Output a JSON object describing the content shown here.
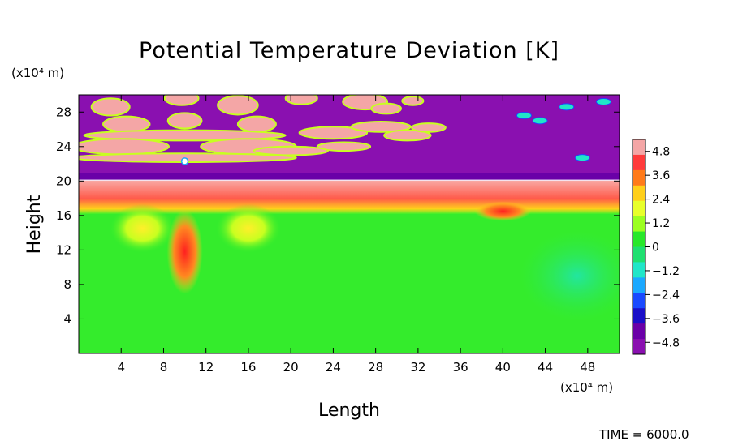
{
  "chart_data": {
    "type": "heatmap",
    "title": "Potential Temperature Deviation [K]",
    "xlabel": "Length",
    "ylabel": "Height",
    "x_unit": "(x10⁴ m)",
    "y_unit": "(x10⁴ m)",
    "xlim": [
      0,
      51
    ],
    "ylim": [
      0,
      30
    ],
    "xticks": [
      4,
      8,
      12,
      16,
      20,
      24,
      28,
      32,
      36,
      40,
      44,
      48
    ],
    "yticks": [
      4,
      8,
      12,
      16,
      20,
      24,
      28
    ],
    "colorbar": {
      "range": [
        -5.4,
        5.4
      ],
      "labels": [
        4.8,
        3.6,
        2.4,
        1.2,
        0,
        -1.2,
        -2.4,
        -3.6,
        -4.8
      ],
      "colors": [
        "#f4a6a6",
        "#ff3b3b",
        "#ff7a1a",
        "#ffcf1a",
        "#e8ff2a",
        "#9bff20",
        "#28e82a",
        "#1fe070",
        "#20e6c8",
        "#1aa8ff",
        "#1a4aff",
        "#1a0fc8",
        "#6a00a8",
        "#8a10b0"
      ]
    },
    "layers": [
      {
        "region": "y 0-17 (lower atmosphere)",
        "value": -0.3
      },
      {
        "region": "y 17-20 (warm layer)",
        "value": 4.8
      },
      {
        "region": "y 20-21 (inversion band)",
        "value": -4.8
      },
      {
        "region": "y 21-30 (upper region)",
        "value": -4.8
      }
    ],
    "features": [
      {
        "x": 10,
        "y": 11.8,
        "value": 3.6,
        "label": "central plume"
      },
      {
        "x": 6,
        "y": 14.5,
        "value": 1.2,
        "label": "left vortex"
      },
      {
        "x": 16,
        "y": 14.5,
        "value": 1.2,
        "label": "right vortex"
      },
      {
        "x": 40,
        "y": 16.5,
        "value": 3.6,
        "label": "eddy"
      },
      {
        "x": 47,
        "y": 9,
        "value": -1.2,
        "label": "cool patch"
      }
    ]
  },
  "time_label": "TIME = 6000.0"
}
